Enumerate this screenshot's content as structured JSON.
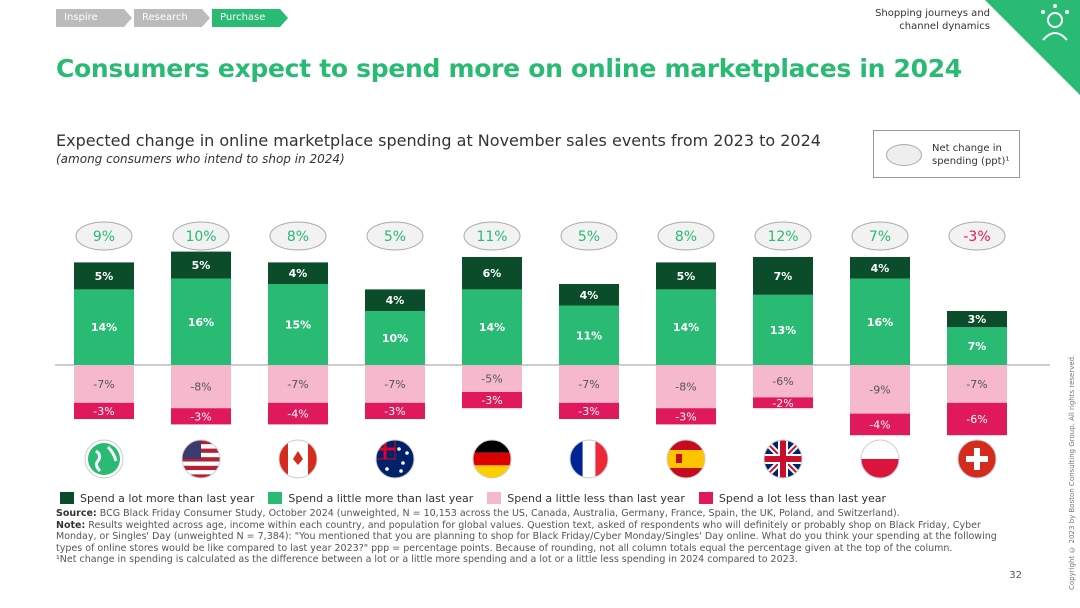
{
  "breadcrumbs": [
    "Inspire",
    "Research",
    "Purchase"
  ],
  "header": {
    "section": "Shopping journeys and channel dynamics"
  },
  "title": "Consumers expect to spend more on online marketplaces in 2024",
  "subtitle": "Expected change in online marketplace spending at November sales events from 2023 to 2024",
  "subnote": "(among consumers who intend to shop in 2024)",
  "net_legend": "Net change in spending (ppt)¹",
  "colors": {
    "lot_more": "#0b4c2b",
    "little_more": "#29ba74",
    "little_less": "#f5b8cc",
    "lot_less": "#e0195c",
    "accent": "#29ba74"
  },
  "chart_data": {
    "type": "bar",
    "stacked": true,
    "categories": [
      "Global",
      "US",
      "Canada",
      "Australia",
      "Germany",
      "France",
      "Spain",
      "UK",
      "Poland",
      "Switzerland"
    ],
    "series": [
      {
        "name": "Spend a lot more than last year",
        "values": [
          5,
          5,
          4,
          4,
          6,
          4,
          5,
          7,
          4,
          3
        ]
      },
      {
        "name": "Spend a little more than last year",
        "values": [
          14,
          16,
          15,
          10,
          14,
          11,
          14,
          13,
          16,
          7
        ]
      },
      {
        "name": "Spend a little less than last year",
        "values": [
          -7,
          -8,
          -7,
          -7,
          -5,
          -7,
          -8,
          -6,
          -9,
          -7
        ]
      },
      {
        "name": "Spend a lot less than last year",
        "values": [
          -3,
          -3,
          -4,
          -3,
          -3,
          -3,
          -3,
          -2,
          -4,
          -6
        ]
      }
    ],
    "net_change": [
      9,
      10,
      8,
      5,
      11,
      5,
      8,
      12,
      7,
      -3
    ],
    "unit": "%",
    "legend": "bottom"
  },
  "notes": {
    "source_label": "Source:",
    "source": "BCG Black Friday Consumer Study, October 2024 (unweighted, N = 10,153 across the US, Canada, Australia, Germany, France, Spain, the UK, Poland, and Switzerland).",
    "note_label": "Note:",
    "note": "Results weighted across age, income within each country, and population for global values. Question text, asked of respondents who will definitely or probably shop on Black Friday, Cyber Monday, or Singles' Day (unweighted N = 7,384): \"You mentioned that you are planning to shop for Black Friday/Cyber Monday/Singles' Day online. What do you think your spending at the following types of online stores would be like compared to last year 2023?\" ppp = percentage points. Because of rounding, not all column totals equal the percentage given at the top of the column.",
    "footnote": "¹Net change in spending is calculated as the difference between a lot or a little more spending and a lot or a little less spending in 2024 compared to 2023."
  },
  "page": "32",
  "copyright": "Copyright © 2023 by Boston Consulting Group. All rights reserved."
}
